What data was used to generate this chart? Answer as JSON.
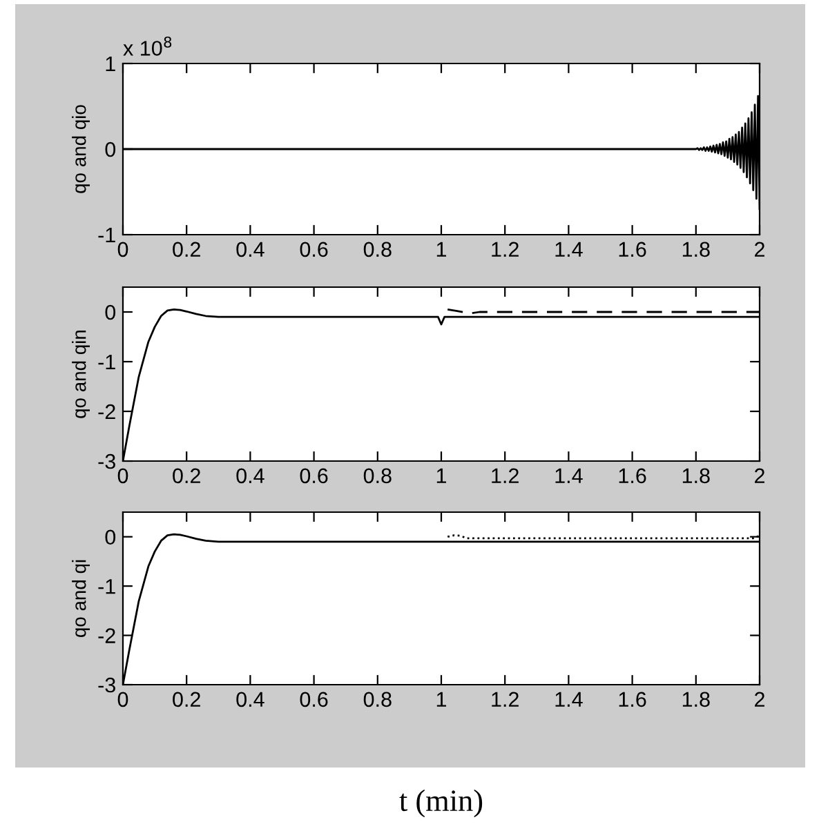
{
  "chart_data": [
    {
      "type": "line",
      "ylabel": "qo and qio",
      "annotations": [
        "x 10$^{8}$"
      ],
      "xlim": [
        0,
        2
      ],
      "xticks": [
        0,
        0.2,
        0.4,
        0.6,
        0.8,
        1,
        1.2,
        1.4,
        1.6,
        1.8,
        2
      ],
      "ylim": [
        -1,
        1
      ],
      "yticks": [
        -1,
        0,
        1
      ],
      "grid": false,
      "legend": false,
      "series": [
        {
          "color": "#000000",
          "line_style": "solid",
          "x": [
            0,
            1.8,
            1.805,
            1.81,
            1.815,
            1.82,
            1.825,
            1.83,
            1.835,
            1.84,
            1.845,
            1.85,
            1.855,
            1.86,
            1.865,
            1.87,
            1.875,
            1.88,
            1.885,
            1.89,
            1.895,
            1.9,
            1.905,
            1.91,
            1.915,
            1.92,
            1.925,
            1.93,
            1.935,
            1.94,
            1.945,
            1.95,
            1.955,
            1.96,
            1.965,
            1.97,
            1.975,
            1.98,
            1.985,
            1.99,
            1.995,
            2.0
          ],
          "values": [
            0,
            0,
            0.01,
            -0.01,
            0.01,
            -0.01,
            0.02,
            -0.02,
            0.02,
            -0.02,
            0.03,
            -0.03,
            0.04,
            -0.04,
            0.05,
            -0.05,
            0.06,
            -0.06,
            0.08,
            -0.08,
            0.09,
            -0.1,
            0.12,
            -0.12,
            0.14,
            -0.15,
            0.17,
            -0.18,
            0.2,
            -0.22,
            0.25,
            -0.27,
            0.3,
            -0.33,
            0.36,
            -0.4,
            0.43,
            -0.48,
            0.52,
            -0.58,
            0.62,
            -0.7
          ]
        }
      ]
    },
    {
      "type": "line",
      "ylabel": "qo and qin",
      "xlim": [
        0,
        2
      ],
      "xticks": [
        0,
        0.2,
        0.4,
        0.6,
        0.8,
        1,
        1.2,
        1.4,
        1.6,
        1.8,
        2
      ],
      "ylim": [
        -3,
        0.5
      ],
      "yticks": [
        -3,
        -2,
        -1,
        0
      ],
      "grid": false,
      "legend": false,
      "series": [
        {
          "color": "#000000",
          "line_style": "solid",
          "x": [
            0,
            0.02,
            0.05,
            0.08,
            0.1,
            0.12,
            0.14,
            0.16,
            0.18,
            0.2,
            0.23,
            0.26,
            0.3,
            0.5,
            0.8,
            0.99,
            1.0,
            1.01,
            1.05,
            1.5,
            2.0
          ],
          "values": [
            -3,
            -2.3,
            -1.3,
            -0.6,
            -0.3,
            -0.08,
            0.03,
            0.05,
            0.04,
            0.01,
            -0.04,
            -0.08,
            -0.1,
            -0.1,
            -0.1,
            -0.1,
            -0.25,
            -0.1,
            -0.1,
            -0.1,
            -0.1
          ]
        },
        {
          "color": "#000000",
          "line_style": "dashed",
          "x": [
            1.02,
            1.05,
            1.09,
            1.12,
            1.5,
            2.0
          ],
          "values": [
            0.05,
            0.02,
            -0.03,
            0,
            0,
            0
          ]
        }
      ]
    },
    {
      "type": "line",
      "ylabel": "qo and qi",
      "xlabel": "t (min)",
      "xlim": [
        0,
        2
      ],
      "xticks": [
        0,
        0.2,
        0.4,
        0.6,
        0.8,
        1,
        1.2,
        1.4,
        1.6,
        1.8,
        2
      ],
      "ylim": [
        -3,
        0.5
      ],
      "yticks": [
        -3,
        -2,
        -1,
        0
      ],
      "grid": false,
      "legend": false,
      "series": [
        {
          "color": "#000000",
          "line_style": "solid",
          "x": [
            0,
            0.02,
            0.05,
            0.08,
            0.1,
            0.12,
            0.14,
            0.16,
            0.18,
            0.2,
            0.23,
            0.26,
            0.3,
            0.5,
            1.0,
            1.5,
            2.0
          ],
          "values": [
            -3,
            -2.3,
            -1.3,
            -0.6,
            -0.3,
            -0.08,
            0.03,
            0.05,
            0.04,
            0.01,
            -0.04,
            -0.08,
            -0.1,
            -0.1,
            -0.1,
            -0.1,
            -0.1
          ]
        },
        {
          "color": "#000000",
          "line_style": "dotted",
          "x": [
            1.02,
            1.04,
            1.06,
            1.08,
            1.5,
            1.98,
            2.0
          ],
          "values": [
            0.0,
            0.03,
            0.02,
            -0.03,
            -0.03,
            -0.03,
            0.02
          ]
        }
      ]
    }
  ]
}
